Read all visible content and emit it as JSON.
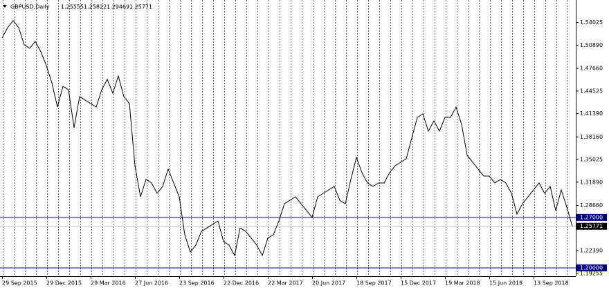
{
  "chart_data": {
    "type": "line",
    "title": "GBPUSD,Daily",
    "ohlc": [
      "1.25555",
      "1.25822",
      "1.29469",
      "1.25771"
    ],
    "categories": [
      "29 Sep 2015",
      null,
      null,
      null,
      null,
      null,
      null,
      null,
      "29 Dec 2015",
      null,
      null,
      null,
      null,
      null,
      null,
      null,
      "29 Mar 2016",
      null,
      null,
      null,
      null,
      null,
      null,
      null,
      "27 Jun 2016",
      null,
      null,
      null,
      null,
      null,
      null,
      null,
      "23 Sep 2016",
      null,
      null,
      null,
      null,
      null,
      null,
      null,
      "22 Dec 2016",
      null,
      null,
      null,
      null,
      null,
      null,
      null,
      "22 Mar 2017",
      null,
      null,
      null,
      null,
      null,
      null,
      null,
      "20 Jun 2017",
      null,
      null,
      null,
      null,
      null,
      null,
      null,
      "18 Sep 2017",
      null,
      null,
      null,
      null,
      null,
      null,
      null,
      "15 Dec 2017",
      null,
      null,
      null,
      null,
      null,
      null,
      null,
      "19 Mar 2018",
      null,
      null,
      null,
      null,
      null,
      null,
      null,
      "15 Jun 2018",
      null,
      null,
      null,
      null,
      null,
      null,
      null,
      "13 Sep 2018",
      null,
      null,
      null,
      null,
      null,
      null,
      null
    ],
    "values": [
      1.5188,
      1.5332,
      1.5428,
      1.5332,
      1.5093,
      1.5045,
      1.5141,
      1.4997,
      1.4805,
      1.4566,
      1.4231,
      1.4518,
      1.447,
      1.3944,
      1.4375,
      1.4327,
      1.4279,
      1.4231,
      1.447,
      1.4614,
      1.4422,
      1.4662,
      1.4375,
      1.4279,
      1.3417,
      1.2986,
      1.3226,
      1.3178,
      1.3034,
      1.313,
      1.3369,
      1.3178,
      1.2986,
      1.246,
      1.222,
      1.2316,
      1.2507,
      1.2555,
      1.2603,
      1.2651,
      1.2364,
      1.2316,
      1.2172,
      1.2555,
      1.2507,
      1.2412,
      1.2316,
      1.2172,
      1.2412,
      1.246,
      1.2651,
      1.289,
      1.2938,
      1.2986,
      1.289,
      1.2795,
      1.2699,
      1.2986,
      1.3034,
      1.3082,
      1.313,
      1.2938,
      1.289,
      1.3226,
      1.3532,
      1.3321,
      1.3178,
      1.313,
      1.3178,
      1.3178,
      1.3321,
      1.3417,
      1.3465,
      1.3513,
      1.38,
      1.4087,
      1.4135,
      1.3896,
      1.4039,
      1.3896,
      1.4087,
      1.4087,
      1.4231,
      1.3992,
      1.3561,
      1.3465,
      1.3369,
      1.3273,
      1.3273,
      1.3178,
      1.3226,
      1.3178,
      1.3034,
      1.2747,
      1.289,
      1.2986,
      1.3082,
      1.3178,
      1.3034,
      1.313,
      1.2795,
      1.3082,
      1.2842,
      1.2577
    ],
    "color": "#000000",
    "ylim": [
      1.1885,
      1.5715
    ],
    "yticks": [
      1.54025,
      {
        "value": 1.5089,
        "label": "1.50890"
      },
      {
        "value": 1.4766,
        "label": "1.47660"
      },
      1.44525,
      {
        "value": 1.4139,
        "label": "1.41390"
      },
      {
        "value": 1.3816,
        "label": "1.38160"
      },
      1.35025,
      {
        "value": 1.3189,
        "label": "1.31890"
      },
      {
        "value": 1.2866,
        "label": "1.28660"
      },
      {
        "value": 1.2239,
        "label": "1.22390"
      },
      1.19255
    ],
    "hlines": [
      {
        "value": 1.27,
        "label": "1.27000"
      },
      {
        "value": 1.2,
        "label": "1.20000"
      }
    ],
    "hline_color": "#000080",
    "price_line": {
      "value": 1.25771,
      "label": "1.25771"
    }
  }
}
